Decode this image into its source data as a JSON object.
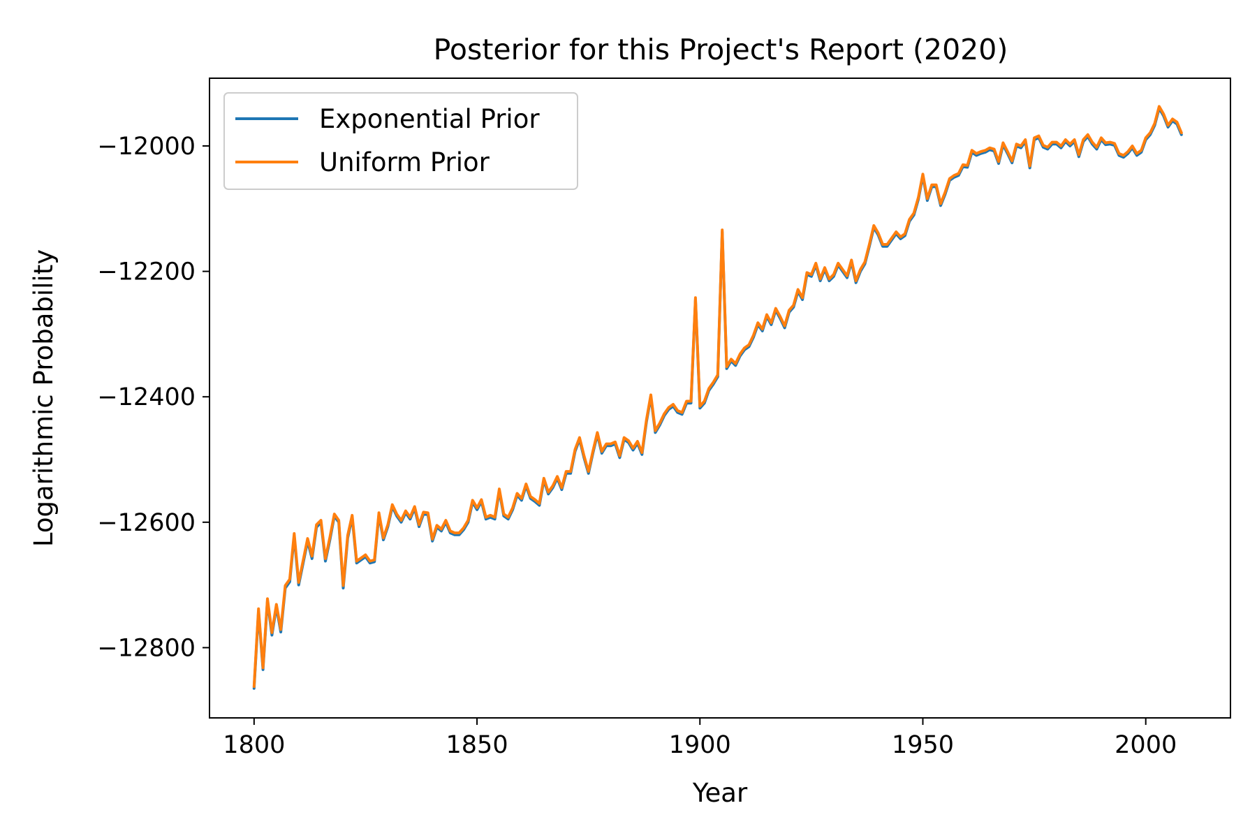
{
  "chart_data": {
    "type": "line",
    "title": "Posterior for this Project's Report (2020)",
    "xlabel": "Year",
    "ylabel": "Logarithmic Probability",
    "xlim": [
      1790,
      2019
    ],
    "ylim": [
      -12912,
      -11892
    ],
    "xticks": [
      1800,
      1850,
      1900,
      1950,
      2000
    ],
    "yticks": [
      -12800,
      -12600,
      -12400,
      -12200,
      -12000
    ],
    "grid": false,
    "legend_position": "upper-left",
    "x": [
      1800,
      1801,
      1802,
      1803,
      1804,
      1805,
      1806,
      1807,
      1808,
      1809,
      1810,
      1811,
      1812,
      1813,
      1814,
      1815,
      1816,
      1817,
      1818,
      1819,
      1820,
      1821,
      1822,
      1823,
      1824,
      1825,
      1826,
      1827,
      1828,
      1829,
      1830,
      1831,
      1832,
      1833,
      1834,
      1835,
      1836,
      1837,
      1838,
      1839,
      1840,
      1841,
      1842,
      1843,
      1844,
      1845,
      1846,
      1847,
      1848,
      1849,
      1850,
      1851,
      1852,
      1853,
      1854,
      1855,
      1856,
      1857,
      1858,
      1859,
      1860,
      1861,
      1862,
      1863,
      1864,
      1865,
      1866,
      1867,
      1868,
      1869,
      1870,
      1871,
      1872,
      1873,
      1874,
      1875,
      1876,
      1877,
      1878,
      1879,
      1880,
      1881,
      1882,
      1883,
      1884,
      1885,
      1886,
      1887,
      1888,
      1889,
      1890,
      1891,
      1892,
      1893,
      1894,
      1895,
      1896,
      1897,
      1898,
      1899,
      1900,
      1901,
      1902,
      1903,
      1904,
      1905,
      1906,
      1907,
      1908,
      1909,
      1910,
      1911,
      1912,
      1913,
      1914,
      1915,
      1916,
      1917,
      1918,
      1919,
      1920,
      1921,
      1922,
      1923,
      1924,
      1925,
      1926,
      1927,
      1928,
      1929,
      1930,
      1931,
      1932,
      1933,
      1934,
      1935,
      1936,
      1937,
      1938,
      1939,
      1940,
      1941,
      1942,
      1943,
      1944,
      1945,
      1946,
      1947,
      1948,
      1949,
      1950,
      1951,
      1952,
      1953,
      1954,
      1955,
      1956,
      1957,
      1958,
      1959,
      1960,
      1961,
      1962,
      1963,
      1964,
      1965,
      1966,
      1967,
      1968,
      1969,
      1970,
      1971,
      1972,
      1973,
      1974,
      1975,
      1976,
      1977,
      1978,
      1979,
      1980,
      1981,
      1982,
      1983,
      1984,
      1985,
      1986,
      1987,
      1988,
      1989,
      1990,
      1991,
      1992,
      1993,
      1994,
      1995,
      1996,
      1997,
      1998,
      1999,
      2000,
      2001,
      2002,
      2003,
      2004,
      2005,
      2006,
      2007,
      2008
    ],
    "series": [
      {
        "name": "Exponential Prior",
        "color": "#1f77b4",
        "values": [
          -12865,
          -12742,
          -12835,
          -12725,
          -12780,
          -12735,
          -12775,
          -12705,
          -12695,
          -12622,
          -12700,
          -12665,
          -12630,
          -12658,
          -12608,
          -12600,
          -12662,
          -12628,
          -12590,
          -12600,
          -12705,
          -12625,
          -12592,
          -12665,
          -12660,
          -12655,
          -12665,
          -12663,
          -12588,
          -12628,
          -12607,
          -12575,
          -12590,
          -12600,
          -12585,
          -12595,
          -12578,
          -12607,
          -12587,
          -12588,
          -12630,
          -12608,
          -12614,
          -12600,
          -12617,
          -12620,
          -12620,
          -12612,
          -12600,
          -12568,
          -12580,
          -12567,
          -12595,
          -12592,
          -12595,
          -12550,
          -12590,
          -12595,
          -12580,
          -12557,
          -12565,
          -12542,
          -12562,
          -12567,
          -12573,
          -12533,
          -12555,
          -12545,
          -12530,
          -12548,
          -12522,
          -12522,
          -12487,
          -12468,
          -12497,
          -12522,
          -12490,
          -12460,
          -12490,
          -12478,
          -12478,
          -12475,
          -12497,
          -12468,
          -12473,
          -12485,
          -12474,
          -12492,
          -12440,
          -12400,
          -12457,
          -12445,
          -12430,
          -12420,
          -12415,
          -12425,
          -12428,
          -12410,
          -12410,
          -12245,
          -12418,
          -12410,
          -12390,
          -12380,
          -12368,
          -12137,
          -12355,
          -12343,
          -12350,
          -12335,
          -12325,
          -12320,
          -12305,
          -12285,
          -12295,
          -12272,
          -12285,
          -12262,
          -12275,
          -12290,
          -12265,
          -12257,
          -12232,
          -12245,
          -12205,
          -12208,
          -12190,
          -12215,
          -12197,
          -12215,
          -12208,
          -12190,
          -12200,
          -12210,
          -12185,
          -12218,
          -12200,
          -12188,
          -12160,
          -12130,
          -12142,
          -12160,
          -12160,
          -12150,
          -12140,
          -12148,
          -12143,
          -12120,
          -12110,
          -12085,
          -12048,
          -12087,
          -12065,
          -12065,
          -12095,
          -12077,
          -12055,
          -12050,
          -12047,
          -12033,
          -12034,
          -12010,
          -12015,
          -12012,
          -12010,
          -12006,
          -12008,
          -12028,
          -11998,
          -12012,
          -12027,
          -12000,
          -12003,
          -11993,
          -12035,
          -11990,
          -11987,
          -12002,
          -12005,
          -11997,
          -11997,
          -12003,
          -11993,
          -12000,
          -11993,
          -12017,
          -11993,
          -11985,
          -11997,
          -12005,
          -11990,
          -11998,
          -11997,
          -11999,
          -12015,
          -12018,
          -12012,
          -12003,
          -12015,
          -12010,
          -11990,
          -11982,
          -11967,
          -11940,
          -11952,
          -11970,
          -11960,
          -11965,
          -11982
        ]
      },
      {
        "name": "Uniform Prior",
        "color": "#ff7f0e",
        "values": [
          -12862,
          -12738,
          -12832,
          -12722,
          -12776,
          -12731,
          -12771,
          -12701,
          -12691,
          -12618,
          -12696,
          -12661,
          -12626,
          -12654,
          -12604,
          -12597,
          -12658,
          -12624,
          -12587,
          -12597,
          -12701,
          -12621,
          -12589,
          -12662,
          -12657,
          -12652,
          -12662,
          -12660,
          -12585,
          -12625,
          -12604,
          -12572,
          -12587,
          -12597,
          -12582,
          -12592,
          -12575,
          -12604,
          -12584,
          -12585,
          -12627,
          -12605,
          -12611,
          -12597,
          -12614,
          -12617,
          -12617,
          -12609,
          -12597,
          -12565,
          -12577,
          -12564,
          -12592,
          -12589,
          -12592,
          -12547,
          -12587,
          -12592,
          -12577,
          -12554,
          -12562,
          -12539,
          -12559,
          -12564,
          -12570,
          -12530,
          -12552,
          -12542,
          -12527,
          -12545,
          -12519,
          -12519,
          -12484,
          -12465,
          -12494,
          -12519,
          -12487,
          -12457,
          -12487,
          -12475,
          -12475,
          -12472,
          -12494,
          -12465,
          -12470,
          -12482,
          -12471,
          -12489,
          -12437,
          -12397,
          -12454,
          -12442,
          -12427,
          -12417,
          -12412,
          -12422,
          -12425,
          -12407,
          -12407,
          -12242,
          -12415,
          -12407,
          -12387,
          -12377,
          -12365,
          -12134,
          -12352,
          -12340,
          -12347,
          -12332,
          -12322,
          -12317,
          -12302,
          -12282,
          -12292,
          -12269,
          -12282,
          -12259,
          -12272,
          -12287,
          -12262,
          -12254,
          -12229,
          -12242,
          -12202,
          -12205,
          -12187,
          -12212,
          -12194,
          -12212,
          -12205,
          -12187,
          -12197,
          -12207,
          -12182,
          -12215,
          -12197,
          -12185,
          -12157,
          -12127,
          -12139,
          -12157,
          -12157,
          -12147,
          -12137,
          -12145,
          -12140,
          -12117,
          -12107,
          -12082,
          -12045,
          -12084,
          -12062,
          -12062,
          -12092,
          -12074,
          -12052,
          -12047,
          -12044,
          -12030,
          -12031,
          -12007,
          -12012,
          -12009,
          -12007,
          -12003,
          -12005,
          -12025,
          -11995,
          -12009,
          -12024,
          -11997,
          -12000,
          -11990,
          -12032,
          -11987,
          -11984,
          -11999,
          -12002,
          -11994,
          -11994,
          -12000,
          -11990,
          -11997,
          -11990,
          -12014,
          -11990,
          -11982,
          -11994,
          -12002,
          -11987,
          -11995,
          -11994,
          -11996,
          -12012,
          -12015,
          -12009,
          -12000,
          -12012,
          -12007,
          -11987,
          -11979,
          -11964,
          -11937,
          -11949,
          -11967,
          -11957,
          -11962,
          -11979
        ]
      }
    ]
  }
}
